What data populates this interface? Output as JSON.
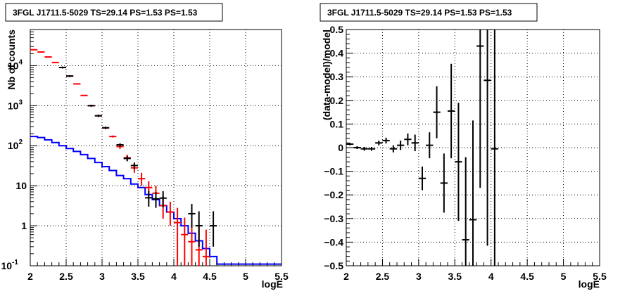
{
  "chart_data": [
    {
      "type": "scatter",
      "title": "3FGL J1711.5-5029 TS=29.14 PS=1.53 PS=1.53",
      "xlabel": "logE",
      "ylabel": "Nb of counts",
      "xlim": [
        2,
        5.5
      ],
      "ylim": [
        0.1,
        80000
      ],
      "yscale": "log",
      "grid": true,
      "x_ticks": [
        "2",
        "2.5",
        "3",
        "3.5",
        "4",
        "4.5",
        "5",
        "5.5"
      ],
      "y_ticks": [
        {
          "value": 0.1,
          "label": "10",
          "exp": "-1"
        },
        {
          "value": 1,
          "label": "1",
          "exp": ""
        },
        {
          "value": 10,
          "label": "10",
          "exp": ""
        },
        {
          "value": 100,
          "label": "10",
          "exp": "2"
        },
        {
          "value": 1000,
          "label": "10",
          "exp": "3"
        },
        {
          "value": 10000,
          "label": "10",
          "exp": "4"
        }
      ],
      "colors": {
        "data": "#000000",
        "model": "#ff0000",
        "background": "#0000ff"
      },
      "series": [
        {
          "kind": "data",
          "x": [
            2.45,
            2.55,
            2.85,
            2.95,
            3.05,
            3.25,
            3.35,
            3.45,
            3.65,
            3.75,
            3.85,
            4.25,
            4.35,
            4.55
          ],
          "y": [
            9000,
            5500,
            1000,
            560,
            280,
            105,
            48,
            32,
            5,
            4.7,
            4.9,
            2.0,
            1.0,
            1.0
          ],
          "ylo": [
            8500,
            5200,
            940,
            520,
            260,
            95,
            41,
            26,
            3.0,
            2.8,
            2.9,
            0.9,
            0.3,
            0.3
          ],
          "yhi": [
            9500,
            5800,
            1060,
            600,
            300,
            115,
            55,
            38,
            7.5,
            7.0,
            7.3,
            3.5,
            2.3,
            2.3
          ]
        },
        {
          "kind": "model",
          "x": [
            2.05,
            2.15,
            2.25,
            2.35,
            2.45,
            2.55,
            2.65,
            2.75,
            2.85,
            2.95,
            3.05,
            3.15,
            3.25,
            3.35,
            3.45,
            3.55,
            3.65,
            3.75,
            3.85,
            3.95,
            4.05,
            4.15,
            4.25,
            4.35,
            4.45
          ],
          "y": [
            25000,
            22000,
            16500,
            12000,
            9000,
            5500,
            3500,
            1800,
            1000,
            560,
            280,
            170,
            95,
            50,
            28,
            15,
            9,
            6.5,
            3.2,
            2.2,
            1.2,
            0.6,
            0.4,
            0.25,
            0.17
          ],
          "ylo": [
            24500,
            21500,
            16200,
            11800,
            8800,
            5400,
            3450,
            1770,
            985,
            550,
            270,
            160,
            83,
            41,
            21,
            10,
            5.5,
            3.8,
            1.5,
            1.0,
            0.1,
            0.1,
            0.1,
            0.1,
            0.1
          ],
          "yhi": [
            25500,
            22500,
            16800,
            12200,
            9200,
            5600,
            3550,
            1830,
            1015,
            570,
            290,
            180,
            107,
            60,
            36,
            21,
            13,
            10,
            5.6,
            4.0,
            2.8,
            1.6,
            1.3,
            1.0,
            0.8
          ]
        },
        {
          "kind": "background",
          "step_edges": [
            2.0,
            2.1,
            2.2,
            2.3,
            2.4,
            2.5,
            2.6,
            2.7,
            2.8,
            2.9,
            3.0,
            3.1,
            3.2,
            3.3,
            3.4,
            3.5,
            3.6,
            3.7,
            3.8,
            3.9,
            4.0,
            4.1,
            4.2,
            4.3,
            4.4,
            4.5,
            4.6,
            5.5
          ],
          "values": [
            170,
            160,
            140,
            120,
            100,
            85,
            72,
            60,
            48,
            38,
            30,
            24,
            18,
            15,
            11,
            9,
            6,
            4.5,
            3.2,
            2.2,
            1.5,
            1.0,
            0.65,
            0.42,
            0.27,
            0.17,
            0.11
          ]
        }
      ]
    },
    {
      "type": "scatter",
      "title": "3FGL J1711.5-5029 TS=29.14 PS=1.53 PS=1.53",
      "xlabel": "logE",
      "ylabel": "(data-model)/model",
      "xlim": [
        2,
        5.5
      ],
      "ylim": [
        -0.5,
        0.5
      ],
      "grid": true,
      "x_ticks": [
        "2",
        "2.5",
        "3",
        "3.5",
        "4",
        "4.5",
        "5",
        "5.5"
      ],
      "y_ticks": [
        "−0.5",
        "−0.4",
        "−0.3",
        "−0.2",
        "−0.1",
        "0",
        "0.1",
        "0.2",
        "0.3",
        "0.4",
        "0.5"
      ],
      "colors": {
        "residual": "#000000"
      },
      "series": [
        {
          "kind": "residual",
          "x": [
            2.05,
            2.15,
            2.25,
            2.35,
            2.45,
            2.55,
            2.65,
            2.75,
            2.85,
            2.95,
            3.05,
            3.15,
            3.25,
            3.35,
            3.45,
            3.55,
            3.65,
            3.75,
            3.85,
            3.95,
            4.05
          ],
          "y": [
            0.015,
            0.0,
            -0.005,
            -0.005,
            0.02,
            0.03,
            -0.005,
            0.01,
            0.035,
            0.02,
            -0.13,
            0.01,
            0.15,
            -0.15,
            0.155,
            -0.06,
            -0.39,
            -0.305,
            0.43,
            0.285,
            -0.005
          ],
          "err": [
            0.005,
            0.006,
            0.008,
            0.008,
            0.01,
            0.012,
            0.015,
            0.02,
            0.025,
            0.035,
            0.05,
            0.055,
            0.11,
            0.125,
            0.2,
            0.25,
            0.35,
            0.42,
            0.6,
            0.7,
            1.0
          ]
        }
      ]
    }
  ]
}
